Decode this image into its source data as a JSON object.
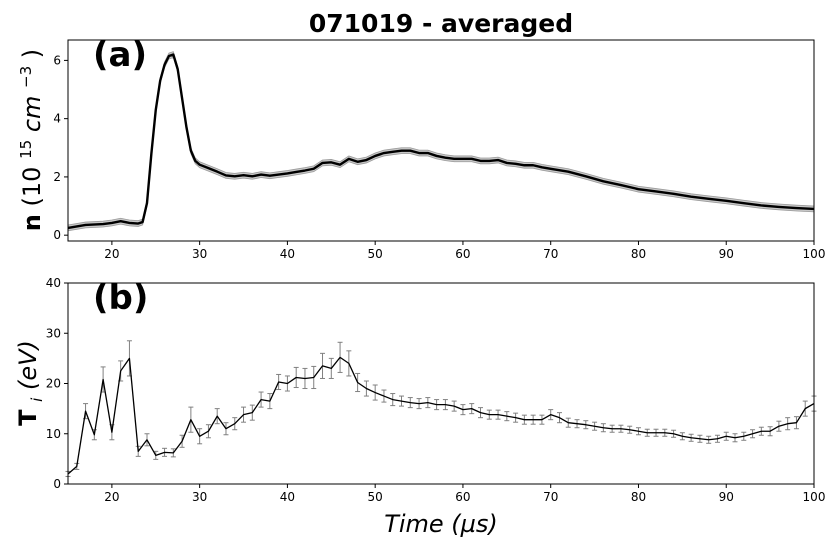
{
  "figure": {
    "title": "071019 - averaged"
  },
  "chart_data": [
    {
      "type": "line",
      "panel_label": "(a)",
      "ylabel": "n (10^15 cm^-3)",
      "xlabel": "",
      "xlim": [
        15,
        100
      ],
      "ylim": [
        -0.2,
        6.7
      ],
      "xticks": [
        20,
        30,
        40,
        50,
        60,
        70,
        80,
        90,
        100
      ],
      "yticks": [
        0,
        2,
        4,
        6
      ],
      "grid": false,
      "series": [
        {
          "style": "line with shaded uncertainty band",
          "x": [
            15,
            17,
            19,
            20,
            21,
            22,
            23,
            23.5,
            24,
            24.5,
            25,
            25.5,
            26,
            26.5,
            27,
            27.5,
            28,
            28.5,
            29,
            29.5,
            30,
            31,
            32,
            33,
            34,
            35,
            36,
            37,
            38,
            39,
            40,
            41,
            42,
            43,
            44,
            45,
            46,
            47,
            48,
            49,
            50,
            51,
            52,
            53,
            54,
            55,
            56,
            57,
            58,
            59,
            60,
            61,
            62,
            63,
            64,
            65,
            66,
            67,
            68,
            69,
            70,
            72,
            74,
            76,
            78,
            80,
            82,
            84,
            86,
            88,
            90,
            92,
            94,
            96,
            98,
            100
          ],
          "y": [
            0.25,
            0.35,
            0.38,
            0.42,
            0.48,
            0.42,
            0.4,
            0.45,
            1.1,
            2.8,
            4.3,
            5.3,
            5.85,
            6.15,
            6.2,
            5.7,
            4.7,
            3.7,
            2.9,
            2.55,
            2.42,
            2.3,
            2.18,
            2.05,
            2.02,
            2.06,
            2.02,
            2.08,
            2.04,
            2.08,
            2.12,
            2.17,
            2.22,
            2.28,
            2.48,
            2.5,
            2.42,
            2.62,
            2.52,
            2.58,
            2.72,
            2.82,
            2.86,
            2.9,
            2.9,
            2.82,
            2.82,
            2.72,
            2.66,
            2.62,
            2.62,
            2.62,
            2.55,
            2.55,
            2.58,
            2.48,
            2.45,
            2.4,
            2.4,
            2.33,
            2.28,
            2.18,
            2.02,
            1.85,
            1.72,
            1.58,
            1.5,
            1.42,
            1.32,
            1.25,
            1.18,
            1.1,
            1.02,
            0.97,
            0.93,
            0.9
          ],
          "uncertainty": 0.1
        }
      ]
    },
    {
      "type": "line",
      "panel_label": "(b)",
      "ylabel": "T_i (eV)",
      "xlabel": "Time (µs)",
      "xlim": [
        15,
        100
      ],
      "ylim": [
        0,
        40
      ],
      "xticks": [
        20,
        30,
        40,
        50,
        60,
        70,
        80,
        90,
        100
      ],
      "yticks": [
        0,
        10,
        20,
        30,
        40
      ],
      "grid": false,
      "series": [
        {
          "style": "line with error bars",
          "x": [
            15,
            16,
            17,
            18,
            19,
            20,
            21,
            22,
            23,
            24,
            25,
            26,
            27,
            28,
            29,
            30,
            31,
            32,
            33,
            34,
            35,
            36,
            37,
            38,
            39,
            40,
            41,
            42,
            43,
            44,
            45,
            46,
            47,
            48,
            49,
            50,
            51,
            52,
            53,
            54,
            55,
            56,
            57,
            58,
            59,
            60,
            61,
            62,
            63,
            64,
            65,
            66,
            67,
            68,
            69,
            70,
            71,
            72,
            73,
            74,
            75,
            76,
            77,
            78,
            79,
            80,
            81,
            82,
            83,
            84,
            85,
            86,
            87,
            88,
            89,
            90,
            91,
            92,
            93,
            94,
            95,
            96,
            97,
            98,
            99,
            100
          ],
          "y": [
            2.0,
            3.5,
            14.5,
            9.8,
            20.8,
            10.3,
            22.5,
            25.0,
            6.5,
            8.8,
            5.7,
            6.3,
            6.2,
            8.5,
            12.8,
            9.5,
            10.5,
            13.5,
            11.0,
            12.0,
            13.8,
            14.2,
            16.8,
            16.5,
            20.3,
            20.0,
            21.2,
            21.0,
            21.2,
            23.5,
            23.0,
            25.2,
            24.0,
            20.2,
            19.0,
            18.2,
            17.5,
            16.8,
            16.5,
            16.2,
            16.0,
            16.2,
            15.8,
            15.8,
            15.5,
            14.8,
            15.0,
            14.2,
            13.8,
            13.8,
            13.5,
            13.2,
            12.8,
            12.8,
            12.8,
            13.8,
            13.2,
            12.2,
            12.0,
            11.8,
            11.5,
            11.2,
            11.0,
            11.0,
            10.8,
            10.5,
            10.2,
            10.2,
            10.2,
            10.0,
            9.5,
            9.2,
            9.0,
            8.8,
            9.0,
            9.5,
            9.2,
            9.5,
            10.0,
            10.5,
            10.5,
            11.5,
            12.0,
            12.2,
            15.0,
            16.0
          ],
          "err": [
            0.5,
            0.6,
            1.5,
            1.0,
            2.5,
            1.5,
            2.0,
            3.5,
            1.0,
            1.2,
            0.8,
            0.8,
            0.8,
            1.2,
            2.5,
            1.5,
            1.3,
            1.5,
            1.2,
            1.2,
            1.5,
            1.5,
            1.5,
            1.5,
            1.5,
            1.5,
            2.0,
            2.0,
            2.2,
            2.5,
            2.0,
            3.0,
            2.5,
            1.8,
            1.5,
            1.5,
            1.2,
            1.2,
            1.0,
            1.0,
            1.0,
            1.0,
            1.0,
            1.0,
            1.0,
            1.0,
            1.0,
            1.0,
            0.9,
            0.9,
            0.9,
            0.9,
            0.9,
            0.9,
            0.9,
            1.0,
            1.0,
            0.9,
            0.8,
            0.8,
            0.8,
            0.8,
            0.7,
            0.7,
            0.7,
            0.7,
            0.7,
            0.7,
            0.7,
            0.7,
            0.7,
            0.7,
            0.7,
            0.7,
            0.7,
            0.8,
            0.8,
            0.8,
            0.8,
            0.8,
            0.9,
            1.0,
            1.2,
            1.2,
            1.5,
            1.5
          ]
        }
      ]
    }
  ],
  "axis_text": {
    "a_ylabel_main": "n",
    "a_ylabel_rest": "(10",
    "a_ylabel_exp": "15",
    "a_ylabel_unit": " cm",
    "a_ylabel_exp2": "−3",
    "a_ylabel_close": ")",
    "b_ylabel_main": "T",
    "b_ylabel_sub": "i",
    "b_ylabel_rest": " (eV)",
    "xlabel": "Time (µs)"
  }
}
